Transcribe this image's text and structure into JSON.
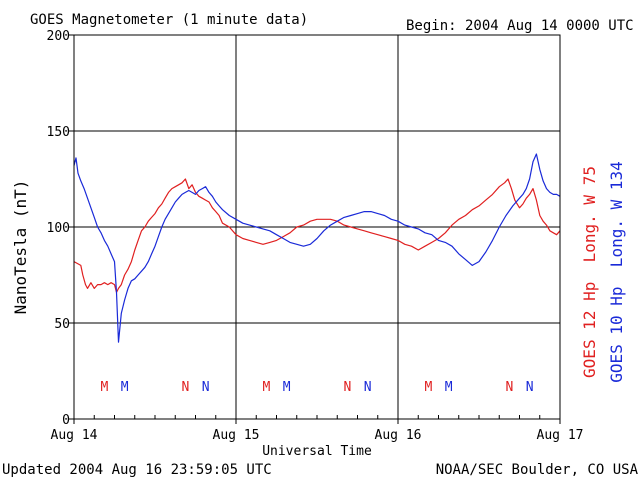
{
  "chart_data": {
    "type": "line",
    "title": "GOES Magnetometer (1 minute data)",
    "begin": "Begin:  2004 Aug 14 0000 UTC",
    "xlabel": "Universal Time",
    "ylabel": "NanoTesla (nT)",
    "xlim": [
      0,
      72
    ],
    "ylim": [
      0,
      200
    ],
    "x_unit": "hours since 2004 Aug 14 0000 UTC",
    "y_ticks": [
      0,
      50,
      100,
      150,
      200
    ],
    "x_ticks": [
      {
        "x": 0,
        "label": "Aug 14"
      },
      {
        "x": 24,
        "label": "Aug 15"
      },
      {
        "x": 48,
        "label": "Aug 16"
      },
      {
        "x": 72,
        "label": "Aug 17"
      }
    ],
    "grid": true,
    "series": [
      {
        "name": "GOES 12 Hp  Long. W 75",
        "color": "#e02020",
        "x": [
          0.0,
          0.5,
          1.0,
          1.3,
          1.7,
          2.0,
          2.5,
          3.0,
          3.5,
          4.0,
          4.5,
          5.0,
          5.5,
          6.0,
          6.3,
          6.6,
          7.0,
          7.5,
          8.0,
          8.5,
          9.0,
          9.5,
          10.0,
          10.5,
          11.0,
          11.5,
          12.0,
          12.5,
          13.0,
          13.5,
          14.0,
          14.5,
          15.0,
          15.5,
          16.0,
          16.5,
          17.0,
          17.5,
          18.0,
          18.5,
          19.0,
          19.5,
          20.0,
          20.5,
          21.0,
          21.5,
          22.0,
          23.0,
          24.0,
          25.0,
          26.0,
          27.0,
          28.0,
          29.0,
          30.0,
          31.0,
          32.0,
          33.0,
          34.0,
          35.0,
          36.0,
          37.0,
          38.0,
          39.0,
          40.0,
          41.0,
          42.0,
          43.0,
          44.0,
          45.0,
          46.0,
          47.0,
          48.0,
          49.0,
          50.0,
          51.0,
          52.0,
          53.0,
          54.0,
          55.0,
          56.0,
          57.0,
          58.0,
          59.0,
          60.0,
          61.0,
          62.0,
          63.0,
          63.8,
          64.3,
          64.8,
          65.3,
          66.0,
          66.5,
          67.0,
          67.5,
          68.0,
          68.5,
          69.0,
          69.5,
          70.0,
          70.5,
          71.0,
          71.5,
          72.0
        ],
        "values": [
          82,
          81,
          80,
          75,
          70,
          68,
          71,
          68,
          70,
          70,
          71,
          70,
          71,
          70,
          66,
          68,
          70,
          75,
          78,
          82,
          88,
          93,
          98,
          100,
          103,
          105,
          107,
          110,
          112,
          115,
          118,
          120,
          121,
          122,
          123,
          125,
          120,
          122,
          118,
          116,
          115,
          114,
          113,
          110,
          108,
          106,
          102,
          100,
          96,
          94,
          93,
          92,
          91,
          92,
          93,
          95,
          97,
          100,
          101,
          103,
          104,
          104,
          104,
          103,
          101,
          100,
          99,
          98,
          97,
          96,
          95,
          94,
          93,
          91,
          90,
          88,
          90,
          92,
          94,
          97,
          101,
          104,
          106,
          109,
          111,
          114,
          117,
          121,
          123,
          125,
          120,
          114,
          110,
          112,
          115,
          117,
          120,
          114,
          106,
          103,
          101,
          98,
          97,
          96,
          98
        ]
      },
      {
        "name": "GOES 10 Hp  Long. W 134",
        "color": "#1a2ad8",
        "x": [
          0.0,
          0.3,
          0.6,
          1.0,
          1.5,
          2.0,
          2.5,
          3.0,
          3.5,
          4.0,
          4.5,
          5.0,
          5.5,
          6.0,
          6.3,
          6.6,
          7.0,
          7.5,
          8.0,
          8.5,
          9.0,
          9.5,
          10.0,
          10.5,
          11.0,
          11.5,
          12.0,
          12.5,
          13.0,
          13.5,
          14.0,
          14.5,
          15.0,
          15.5,
          16.0,
          16.5,
          17.0,
          17.5,
          18.0,
          18.5,
          19.0,
          19.5,
          20.0,
          20.5,
          21.0,
          21.5,
          22.0,
          23.0,
          24.0,
          25.0,
          26.0,
          27.0,
          28.0,
          29.0,
          30.0,
          31.0,
          32.0,
          33.0,
          34.0,
          35.0,
          36.0,
          37.0,
          38.0,
          39.0,
          40.0,
          41.0,
          42.0,
          43.0,
          44.0,
          45.0,
          46.0,
          47.0,
          48.0,
          49.0,
          50.0,
          51.0,
          52.0,
          53.0,
          54.0,
          55.0,
          56.0,
          57.0,
          58.0,
          59.0,
          60.0,
          61.0,
          62.0,
          63.0,
          64.0,
          65.0,
          66.0,
          66.5,
          67.0,
          67.5,
          68.0,
          68.5,
          69.0,
          69.5,
          70.0,
          70.5,
          71.0,
          71.5,
          72.0
        ],
        "values": [
          132,
          136,
          128,
          124,
          120,
          115,
          110,
          105,
          100,
          97,
          93,
          90,
          86,
          82,
          66,
          40,
          55,
          62,
          68,
          72,
          73,
          75,
          77,
          79,
          82,
          86,
          90,
          95,
          100,
          104,
          107,
          110,
          113,
          115,
          117,
          118,
          119,
          118,
          117,
          119,
          120,
          121,
          118,
          116,
          113,
          111,
          109,
          106,
          104,
          102,
          101,
          100,
          99,
          98,
          96,
          94,
          92,
          91,
          90,
          91,
          94,
          98,
          101,
          103,
          105,
          106,
          107,
          108,
          108,
          107,
          106,
          104,
          103,
          101,
          100,
          99,
          97,
          96,
          93,
          92,
          90,
          86,
          83,
          80,
          82,
          87,
          93,
          100,
          106,
          111,
          115,
          117,
          120,
          125,
          134,
          138,
          130,
          124,
          120,
          118,
          117,
          117,
          116
        ]
      }
    ],
    "markers": [
      {
        "x": 4.5,
        "label": "M",
        "color": "#e02020"
      },
      {
        "x": 7.5,
        "label": "M",
        "color": "#1a2ad8"
      },
      {
        "x": 16.5,
        "label": "N",
        "color": "#e02020"
      },
      {
        "x": 19.5,
        "label": "N",
        "color": "#1a2ad8"
      },
      {
        "x": 28.5,
        "label": "M",
        "color": "#e02020"
      },
      {
        "x": 31.5,
        "label": "M",
        "color": "#1a2ad8"
      },
      {
        "x": 40.5,
        "label": "N",
        "color": "#e02020"
      },
      {
        "x": 43.5,
        "label": "N",
        "color": "#1a2ad8"
      },
      {
        "x": 52.5,
        "label": "M",
        "color": "#e02020"
      },
      {
        "x": 55.5,
        "label": "M",
        "color": "#1a2ad8"
      },
      {
        "x": 64.5,
        "label": "N",
        "color": "#e02020"
      },
      {
        "x": 67.5,
        "label": "N",
        "color": "#1a2ad8"
      }
    ],
    "legend_placement": "right, vertical",
    "legend_labels": [
      "GOES 12 Hp  Long. W 75",
      "GOES 10 Hp  Long. W 134"
    ]
  },
  "footer": {
    "updated": "Updated 2004 Aug 16 23:59:05 UTC",
    "source": "NOAA/SEC Boulder, CO USA"
  }
}
